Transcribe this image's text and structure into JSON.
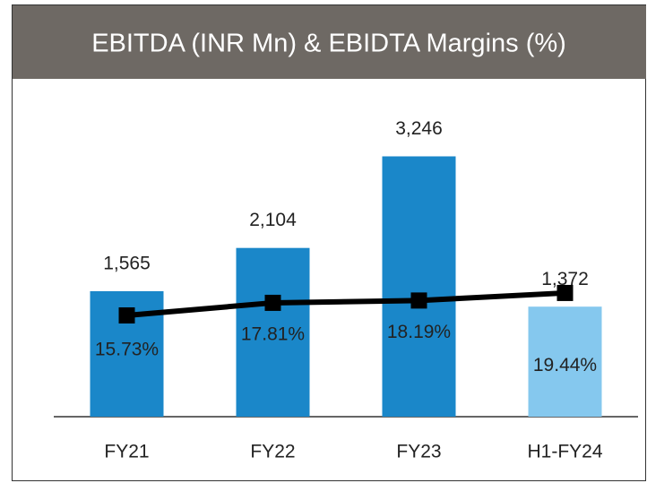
{
  "chart_data": {
    "type": "bar-line",
    "title": "EBITDA (INR Mn) & EBIDTA Margins (%)",
    "categories": [
      "FY21",
      "FY22",
      "FY23",
      "H1-FY24"
    ],
    "series": [
      {
        "type": "bar",
        "colors": [
          "#1a87c9",
          "#1a87c9",
          "#1a87c9",
          "#85c8ee"
        ],
        "values": [
          1565,
          2104,
          3246,
          1372
        ],
        "value_labels": [
          "1,565",
          "2,104",
          "3,246",
          "1,372"
        ]
      },
      {
        "type": "line",
        "axis": "y2",
        "color": "#000000",
        "values": [
          15.73,
          17.81,
          18.19,
          19.44
        ],
        "value_labels": [
          "15.73%",
          "17.81%",
          "18.19%",
          "19.44%"
        ]
      }
    ],
    "ylim": [
      0,
      4000
    ],
    "y2lim": [
      -1,
      52
    ]
  }
}
